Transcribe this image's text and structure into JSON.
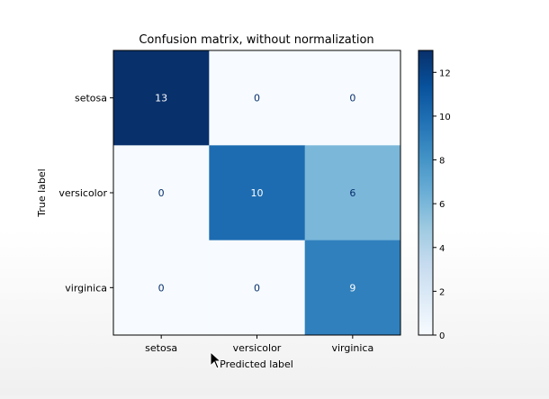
{
  "chart_data": {
    "type": "heatmap",
    "title": "Confusion matrix, without normalization",
    "xlabel": "Predicted label",
    "ylabel": "True label",
    "x_categories": [
      "setosa",
      "versicolor",
      "virginica"
    ],
    "y_categories": [
      "setosa",
      "versicolor",
      "virginica"
    ],
    "values": [
      [
        13,
        0,
        0
      ],
      [
        0,
        10,
        6
      ],
      [
        0,
        0,
        9
      ]
    ],
    "colormap": "Blues",
    "colorbar": {
      "range": [
        0,
        13
      ],
      "ticks": [
        0,
        2,
        4,
        6,
        8,
        10,
        12
      ]
    },
    "grid": false
  },
  "colors": {
    "low": "#f7fbff",
    "high": "#08306b",
    "text_light": "#ffffff",
    "text_dark": "#08306b"
  }
}
